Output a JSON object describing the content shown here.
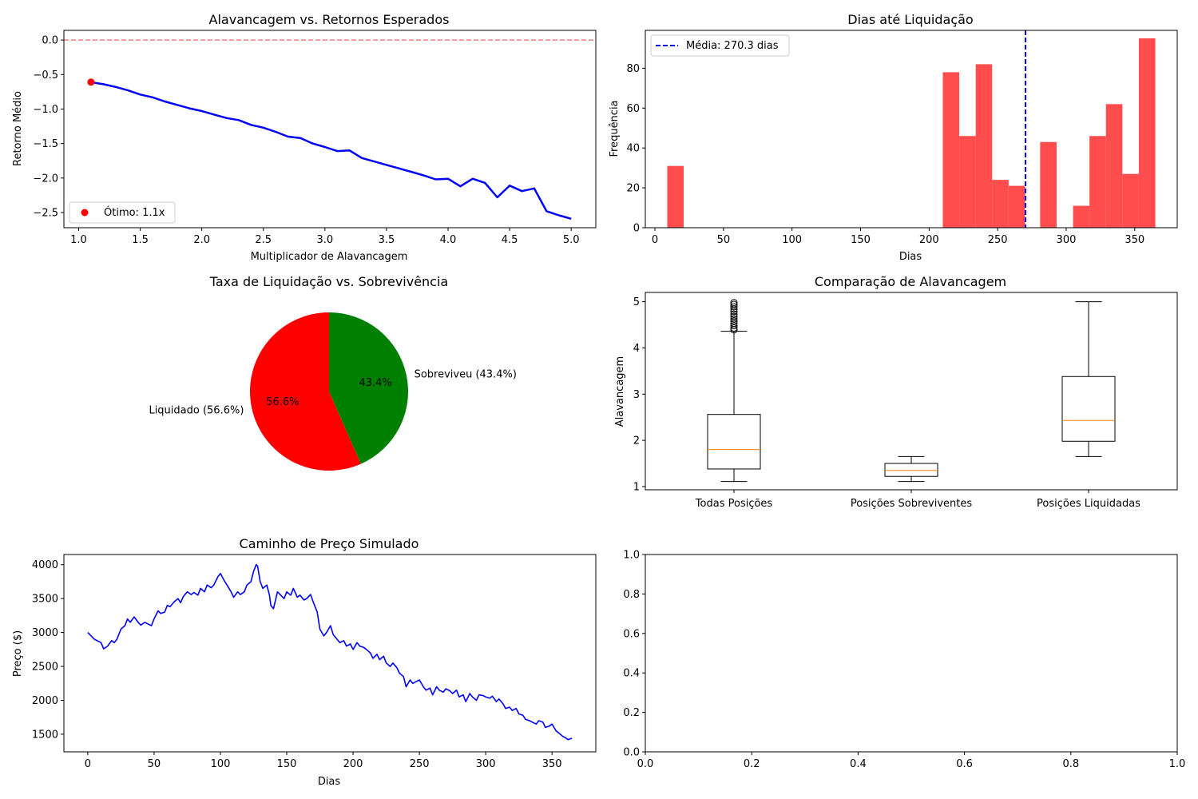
{
  "colors": {
    "line": "#0000ff",
    "zero_line": "#ff0000",
    "optimum_marker": "#ff0000",
    "histogram": "#ff4d4d",
    "mean_line": "#0000ff",
    "pie_liquidated": "#ff0000",
    "pie_survived": "#008000",
    "box_median": "#ff7f0e",
    "price_line": "#0000ff"
  },
  "chart_data": [
    {
      "id": "leverage_returns",
      "type": "line",
      "title": "Alavancagem vs. Retornos Esperados",
      "xlabel": "Multiplicador de Alavancagem",
      "ylabel": "Retorno Médio",
      "xlim": [
        0.88,
        5.2
      ],
      "ylim": [
        -2.72,
        0.14
      ],
      "xticks": [
        "1.0",
        "1.5",
        "2.0",
        "2.5",
        "3.0",
        "3.5",
        "4.0",
        "4.5",
        "5.0"
      ],
      "yticks": [
        "0.0",
        "−0.5",
        "−1.0",
        "−1.5",
        "−2.0",
        "−2.5"
      ],
      "reference_line": 0.0,
      "x": [
        1.1,
        1.2,
        1.3,
        1.4,
        1.5,
        1.6,
        1.7,
        1.8,
        1.9,
        2.0,
        2.1,
        2.2,
        2.3,
        2.4,
        2.5,
        2.6,
        2.7,
        2.8,
        2.9,
        3.0,
        3.1,
        3.2,
        3.3,
        3.4,
        3.5,
        3.6,
        3.7,
        3.8,
        3.9,
        4.0,
        4.1,
        4.2,
        4.3,
        4.4,
        4.5,
        4.6,
        4.7,
        4.8,
        4.9,
        5.0
      ],
      "y": [
        -0.61,
        -0.64,
        -0.68,
        -0.73,
        -0.79,
        -0.83,
        -0.89,
        -0.94,
        -0.99,
        -1.03,
        -1.08,
        -1.13,
        -1.16,
        -1.23,
        -1.27,
        -1.33,
        -1.4,
        -1.42,
        -1.5,
        -1.55,
        -1.61,
        -1.6,
        -1.71,
        -1.76,
        -1.81,
        -1.86,
        -1.91,
        -1.96,
        -2.02,
        -2.01,
        -2.12,
        -2.01,
        -2.07,
        -2.28,
        -2.11,
        -2.19,
        -2.15,
        -2.48,
        -2.54,
        -2.59
      ],
      "optimum": {
        "x": 1.1,
        "y": -0.61
      },
      "legend": {
        "label": "Ótimo: 1.1x",
        "position": "lower-left"
      }
    },
    {
      "id": "liquidation_days",
      "type": "bar",
      "title": "Dias até Liquidação",
      "xlabel": "Dias",
      "ylabel": "Frequência",
      "xlim": [
        -7,
        381
      ],
      "ylim": [
        0,
        99
      ],
      "xticks": [
        "0",
        "50",
        "100",
        "150",
        "200",
        "250",
        "300",
        "350"
      ],
      "yticks": [
        "0",
        "20",
        "40",
        "60",
        "80"
      ],
      "bin_edges": [
        10,
        22,
        34,
        46,
        58,
        70,
        82,
        94,
        106,
        118,
        130,
        142,
        154,
        166,
        178,
        190,
        202,
        214,
        226,
        238,
        250,
        262,
        274,
        286,
        298,
        310,
        322,
        334,
        346,
        358,
        370
      ],
      "bins": [
        {
          "start": 9,
          "end": 21,
          "count": 31
        },
        {
          "start": 210,
          "end": 222,
          "count": 78
        },
        {
          "start": 222,
          "end": 234,
          "count": 46
        },
        {
          "start": 234,
          "end": 246,
          "count": 82
        },
        {
          "start": 246,
          "end": 258,
          "count": 24
        },
        {
          "start": 258,
          "end": 270,
          "count": 21
        },
        {
          "start": 281,
          "end": 293,
          "count": 43
        },
        {
          "start": 305,
          "end": 317,
          "count": 11
        },
        {
          "start": 317,
          "end": 329,
          "count": 46
        },
        {
          "start": 329,
          "end": 341,
          "count": 62
        },
        {
          "start": 341,
          "end": 353,
          "count": 27
        },
        {
          "start": 353,
          "end": 365,
          "count": 95
        }
      ],
      "mean": 270.3,
      "legend": {
        "label": "Média: 270.3 dias",
        "position": "upper-left"
      }
    },
    {
      "id": "liquidation_rate",
      "type": "pie",
      "title": "Taxa de Liquidação vs. Sobrevivência",
      "slices": [
        {
          "label": "Liquidado (56.6%)",
          "pct_label": "56.6%",
          "value": 56.6
        },
        {
          "label": "Sobreviveu (43.4%)",
          "pct_label": "43.4%",
          "value": 43.4
        }
      ]
    },
    {
      "id": "leverage_comparison",
      "type": "box",
      "title": "Comparação de Alavancagem",
      "ylabel": "Alavancagem",
      "ylim": [
        0.93,
        5.2
      ],
      "yticks": [
        "1",
        "2",
        "3",
        "4",
        "5"
      ],
      "boxes": [
        {
          "label": "Todas Posições",
          "whisker_low": 1.11,
          "q1": 1.38,
          "median": 1.8,
          "q3": 2.56,
          "whisker_high": 4.36,
          "outliers": [
            4.39,
            4.43,
            4.48,
            4.53,
            4.58,
            4.63,
            4.68,
            4.73,
            4.79,
            4.84,
            4.89,
            4.94,
            4.98
          ]
        },
        {
          "label": "Posições Sobreviventes",
          "whisker_low": 1.11,
          "q1": 1.22,
          "median": 1.35,
          "q3": 1.5,
          "whisker_high": 1.65,
          "outliers": []
        },
        {
          "label": "Posições Liquidadas",
          "whisker_low": 1.65,
          "q1": 1.98,
          "median": 2.43,
          "q3": 3.38,
          "whisker_high": 5.0,
          "outliers": []
        }
      ]
    },
    {
      "id": "price_path",
      "type": "line",
      "title": "Caminho de Preço Simulado",
      "xlabel": "Dias",
      "ylabel": "Preço ($)",
      "xlim": [
        -18,
        383
      ],
      "ylim": [
        1240,
        4150
      ],
      "xticks": [
        "0",
        "50",
        "100",
        "150",
        "200",
        "250",
        "300",
        "350"
      ],
      "yticks": [
        "1500",
        "2000",
        "2500",
        "3000",
        "3500",
        "4000"
      ],
      "x": [
        0,
        5,
        10,
        12,
        15,
        18,
        20,
        22,
        25,
        28,
        30,
        32,
        35,
        38,
        40,
        43,
        45,
        48,
        50,
        53,
        55,
        58,
        60,
        62,
        65,
        68,
        70,
        72,
        75,
        78,
        80,
        83,
        85,
        88,
        90,
        93,
        95,
        98,
        100,
        103,
        105,
        108,
        110,
        113,
        115,
        118,
        120,
        123,
        125,
        127,
        128,
        130,
        132,
        135,
        137,
        138,
        140,
        143,
        145,
        148,
        150,
        153,
        155,
        158,
        160,
        163,
        165,
        168,
        170,
        173,
        175,
        178,
        180,
        183,
        185,
        188,
        190,
        193,
        195,
        198,
        200,
        203,
        205,
        208,
        210,
        213,
        215,
        218,
        220,
        223,
        225,
        228,
        230,
        233,
        235,
        238,
        240,
        243,
        245,
        248,
        250,
        253,
        255,
        258,
        260,
        263,
        265,
        268,
        270,
        273,
        275,
        278,
        280,
        283,
        285,
        288,
        290,
        293,
        295,
        298,
        300,
        303,
        305,
        308,
        310,
        313,
        315,
        318,
        320,
        323,
        325,
        328,
        330,
        333,
        335,
        338,
        340,
        343,
        345,
        348,
        350,
        353,
        355,
        358,
        360,
        362,
        365
      ],
      "y": [
        3000,
        2900,
        2850,
        2760,
        2800,
        2880,
        2850,
        2900,
        3050,
        3100,
        3200,
        3150,
        3230,
        3150,
        3110,
        3150,
        3130,
        3100,
        3200,
        3320,
        3280,
        3300,
        3400,
        3380,
        3450,
        3500,
        3440,
        3530,
        3600,
        3560,
        3590,
        3550,
        3650,
        3600,
        3700,
        3660,
        3700,
        3820,
        3870,
        3760,
        3700,
        3600,
        3520,
        3600,
        3560,
        3600,
        3700,
        3750,
        3900,
        4000,
        3980,
        3750,
        3650,
        3700,
        3550,
        3400,
        3350,
        3600,
        3560,
        3500,
        3600,
        3550,
        3650,
        3520,
        3550,
        3480,
        3500,
        3560,
        3450,
        3300,
        3050,
        2950,
        3000,
        3100,
        2970,
        2900,
        2850,
        2880,
        2800,
        2830,
        2750,
        2850,
        2800,
        2780,
        2750,
        2700,
        2620,
        2680,
        2600,
        2650,
        2550,
        2500,
        2550,
        2480,
        2400,
        2350,
        2200,
        2300,
        2250,
        2280,
        2300,
        2200,
        2150,
        2180,
        2080,
        2200,
        2150,
        2120,
        2170,
        2140,
        2100,
        2150,
        2050,
        2080,
        1980,
        2100,
        2050,
        2000,
        2080,
        2070,
        2050,
        2030,
        2060,
        1980,
        2020,
        1950,
        1880,
        1900,
        1850,
        1880,
        1800,
        1780,
        1720,
        1700,
        1680,
        1650,
        1700,
        1680,
        1600,
        1620,
        1650,
        1550,
        1520,
        1470,
        1450,
        1420,
        1440
      ]
    },
    {
      "id": "empty_axes",
      "type": "empty",
      "xlim": [
        0,
        1
      ],
      "ylim": [
        0,
        1
      ],
      "xticks": [
        "0.0",
        "0.2",
        "0.4",
        "0.6",
        "0.8",
        "1.0"
      ],
      "yticks": [
        "0.0",
        "0.2",
        "0.4",
        "0.6",
        "0.8",
        "1.0"
      ]
    }
  ]
}
